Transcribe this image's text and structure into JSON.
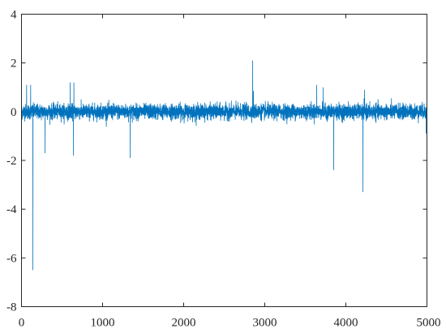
{
  "chart_data": {
    "type": "line",
    "title": "",
    "xlabel": "",
    "ylabel": "",
    "xlim": [
      0,
      5000
    ],
    "ylim": [
      -8,
      4
    ],
    "xticks": [
      0,
      1000,
      2000,
      3000,
      4000,
      5000
    ],
    "yticks": [
      -8,
      -6,
      -4,
      -2,
      0,
      2,
      4
    ],
    "grid": false,
    "line_color": "#0072BD",
    "series": [
      {
        "n_samples": 5000,
        "baseline_mean": 0.0,
        "noise_amplitude": 0.28,
        "spikes": [
          {
            "x": 62,
            "y": 1.1
          },
          {
            "x": 112,
            "y": 1.1
          },
          {
            "x": 140,
            "y": -6.5
          },
          {
            "x": 290,
            "y": -1.7
          },
          {
            "x": 600,
            "y": 1.2
          },
          {
            "x": 640,
            "y": -1.8
          },
          {
            "x": 645,
            "y": 1.2
          },
          {
            "x": 1340,
            "y": -1.9
          },
          {
            "x": 2850,
            "y": 2.1
          },
          {
            "x": 2860,
            "y": 0.85
          },
          {
            "x": 3640,
            "y": 1.1
          },
          {
            "x": 3720,
            "y": 1.0
          },
          {
            "x": 3850,
            "y": -2.4
          },
          {
            "x": 4210,
            "y": -3.3
          },
          {
            "x": 4230,
            "y": 0.9
          },
          {
            "x": 4990,
            "y": -0.9
          }
        ]
      }
    ]
  }
}
